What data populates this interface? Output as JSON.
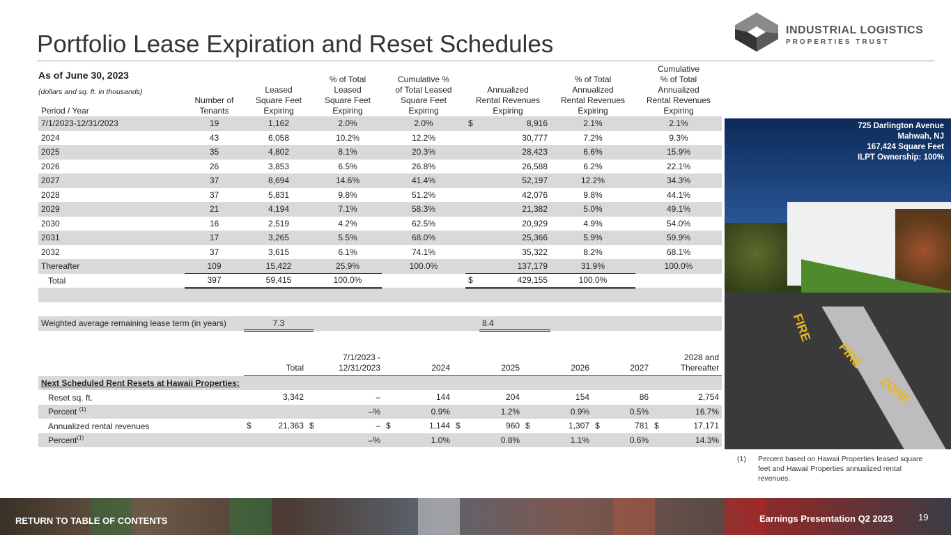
{
  "title": "Portfolio Lease Expiration and Reset Schedules",
  "logo": {
    "name_line1": "INDUSTRIAL LOGISTICS",
    "name_line2": "PROPERTIES TRUST"
  },
  "as_of": "As of June 30, 2023",
  "units_note": "(dollars and sq. ft. in thousands)",
  "lease_table": {
    "headers": [
      [
        "Period / Year"
      ],
      [
        "Number of",
        "Tenants"
      ],
      [
        "Leased",
        "Square Feet",
        "Expiring"
      ],
      [
        "% of Total",
        "Leased",
        "Square Feet",
        "Expiring"
      ],
      [
        "Cumulative %",
        "of Total Leased",
        "Square Feet",
        "Expiring"
      ],
      [
        "Annualized",
        "Rental Revenues",
        "Expiring"
      ],
      [
        "% of Total",
        "Annualized",
        "Rental Revenues",
        "Expiring"
      ],
      [
        "Cumulative",
        "% of Total",
        "Annualized",
        "Rental Revenues",
        "Expiring"
      ]
    ],
    "rows": [
      [
        "7/1/2023-12/31/2023",
        "19",
        "1,162",
        "2.0%",
        "2.0%",
        "$",
        "8,916",
        "2.1%",
        "2.1%"
      ],
      [
        "2024",
        "43",
        "6,058",
        "10.2%",
        "12.2%",
        "",
        "30,777",
        "7.2%",
        "9.3%"
      ],
      [
        "2025",
        "35",
        "4,802",
        "8.1%",
        "20.3%",
        "",
        "28,423",
        "6.6%",
        "15.9%"
      ],
      [
        "2026",
        "26",
        "3,853",
        "6.5%",
        "26.8%",
        "",
        "26,588",
        "6.2%",
        "22.1%"
      ],
      [
        "2027",
        "37",
        "8,694",
        "14.6%",
        "41.4%",
        "",
        "52,197",
        "12.2%",
        "34.3%"
      ],
      [
        "2028",
        "37",
        "5,831",
        "9.8%",
        "51.2%",
        "",
        "42,076",
        "9.8%",
        "44.1%"
      ],
      [
        "2029",
        "21",
        "4,194",
        "7.1%",
        "58.3%",
        "",
        "21,382",
        "5.0%",
        "49.1%"
      ],
      [
        "2030",
        "16",
        "2,519",
        "4.2%",
        "62.5%",
        "",
        "20,929",
        "4.9%",
        "54.0%"
      ],
      [
        "2031",
        "17",
        "3,265",
        "5.5%",
        "68.0%",
        "",
        "25,366",
        "5.9%",
        "59.9%"
      ],
      [
        "2032",
        "37",
        "3,615",
        "6.1%",
        "74.1%",
        "",
        "35,322",
        "8.2%",
        "68.1%"
      ],
      [
        "Thereafter",
        "109",
        "15,422",
        "25.9%",
        "100.0%",
        "",
        "137,179",
        "31.9%",
        "100.0%"
      ]
    ],
    "total": [
      "Total",
      "397",
      "59,415",
      "100.0%",
      "",
      "$",
      "429,155",
      "100.0%",
      ""
    ],
    "wa_label": "Weighted average remaining lease term (in years)",
    "wa_sqft": "7.3",
    "wa_rev": "8.4"
  },
  "reset_table": {
    "headers": [
      [
        "",
        ""
      ],
      [
        "",
        "Total"
      ],
      [
        "7/1/2023 -",
        "12/31/2023"
      ],
      [
        "",
        "2024"
      ],
      [
        "",
        "2025"
      ],
      [
        "",
        "2026"
      ],
      [
        "",
        "2027"
      ],
      [
        "2028 and",
        "Thereafter"
      ]
    ],
    "section_title": "Next Scheduled Rent Resets at Hawaii Properties:",
    "rows": [
      {
        "label": "Reset sq. ft.",
        "sup": "",
        "cells": [
          [
            "",
            "3,342"
          ],
          [
            "",
            "–"
          ],
          [
            "",
            "144"
          ],
          [
            "",
            "204"
          ],
          [
            "",
            "154"
          ],
          [
            "",
            "86"
          ],
          [
            "",
            "2,754"
          ]
        ]
      },
      {
        "label": "Percent ",
        "sup": "(1)",
        "cells": [
          [
            "",
            ""
          ],
          [
            "",
            "–%"
          ],
          [
            "",
            "0.9%"
          ],
          [
            "",
            "1.2%"
          ],
          [
            "",
            "0.9%"
          ],
          [
            "",
            "0.5%"
          ],
          [
            "",
            "16.7%"
          ]
        ]
      },
      {
        "label": "Annualized rental revenues",
        "sup": "",
        "cells": [
          [
            "$",
            "21,363"
          ],
          [
            "$",
            "–"
          ],
          [
            "$",
            "1,144"
          ],
          [
            "$",
            "960"
          ],
          [
            "$",
            "1,307"
          ],
          [
            "$",
            "781"
          ],
          [
            "$",
            "17,171"
          ]
        ]
      },
      {
        "label": "Percent",
        "sup": "(1)",
        "cells": [
          [
            "",
            ""
          ],
          [
            "",
            "–%"
          ],
          [
            "",
            "1.0%"
          ],
          [
            "",
            "0.8%"
          ],
          [
            "",
            "1.1%"
          ],
          [
            "",
            "0.6%"
          ],
          [
            "",
            "14.3%"
          ]
        ]
      }
    ]
  },
  "photo": {
    "caption": [
      "725 Darlington Avenue",
      "Mahwah, NJ",
      "167,424 Square Feet",
      "ILPT Ownership: 100%"
    ],
    "road_text": [
      "FIRE",
      "ZONE"
    ]
  },
  "footnote": {
    "num": "(1)",
    "text": "Percent based on Hawaii Properties leased square feet and Hawaii Properties annualized rental revenues."
  },
  "footer": {
    "back_link": "RETURN TO TABLE OF CONTENTS",
    "presentation": "Earnings Presentation Q2 2023",
    "page": "19"
  }
}
